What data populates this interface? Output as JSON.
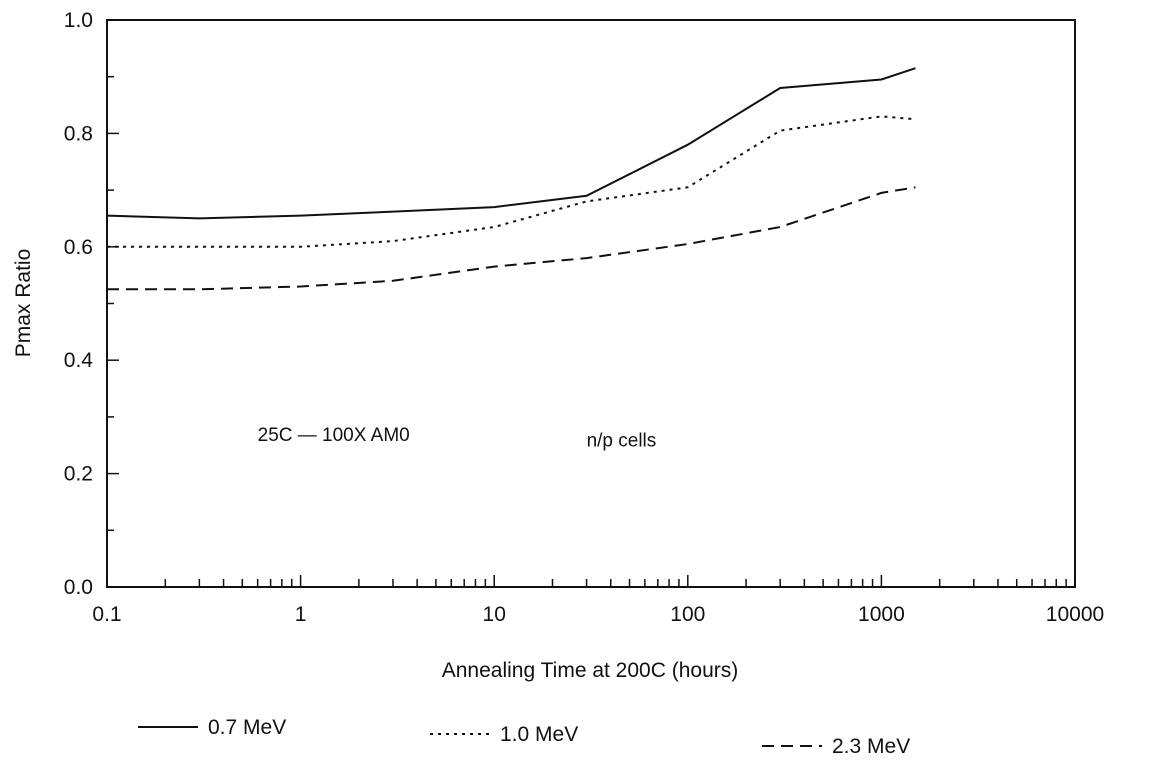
{
  "chart_data": {
    "type": "line",
    "title": "",
    "xlabel": "Annealing Time at 200C (hours)",
    "ylabel": "Pmax Ratio",
    "xscale": "log",
    "xlim": [
      0.1,
      10000
    ],
    "ylim": [
      0.0,
      1.0
    ],
    "x_tick_labels": [
      "0.1",
      "1",
      "10",
      "100",
      "1000",
      "10000"
    ],
    "y_tick_labels": [
      "0.0",
      "0.2",
      "0.4",
      "0.6",
      "0.8",
      "1.0"
    ],
    "grid": false,
    "legend_position": "bottom",
    "annotations": [
      {
        "text": "25C — 100X AM0",
        "x": 0.6,
        "y": 0.27
      },
      {
        "text": "n/p cells",
        "x": 30,
        "y": 0.26
      }
    ],
    "series": [
      {
        "name": "0.7 MeV",
        "style": "solid",
        "x": [
          0.1,
          0.3,
          1,
          3,
          10,
          30,
          100,
          300,
          1000,
          1500
        ],
        "y": [
          0.655,
          0.65,
          0.655,
          0.662,
          0.67,
          0.69,
          0.78,
          0.88,
          0.895,
          0.915
        ]
      },
      {
        "name": "1.0 MeV",
        "style": "dotted",
        "x": [
          0.1,
          0.3,
          1,
          3,
          10,
          30,
          100,
          300,
          1000,
          1500
        ],
        "y": [
          0.6,
          0.6,
          0.6,
          0.61,
          0.635,
          0.68,
          0.705,
          0.805,
          0.83,
          0.825
        ]
      },
      {
        "name": "2.3 MeV",
        "style": "dashed",
        "x": [
          0.1,
          0.3,
          1,
          3,
          10,
          30,
          100,
          300,
          1000,
          1500
        ],
        "y": [
          0.525,
          0.525,
          0.53,
          0.54,
          0.565,
          0.58,
          0.605,
          0.635,
          0.695,
          0.705
        ]
      }
    ]
  }
}
